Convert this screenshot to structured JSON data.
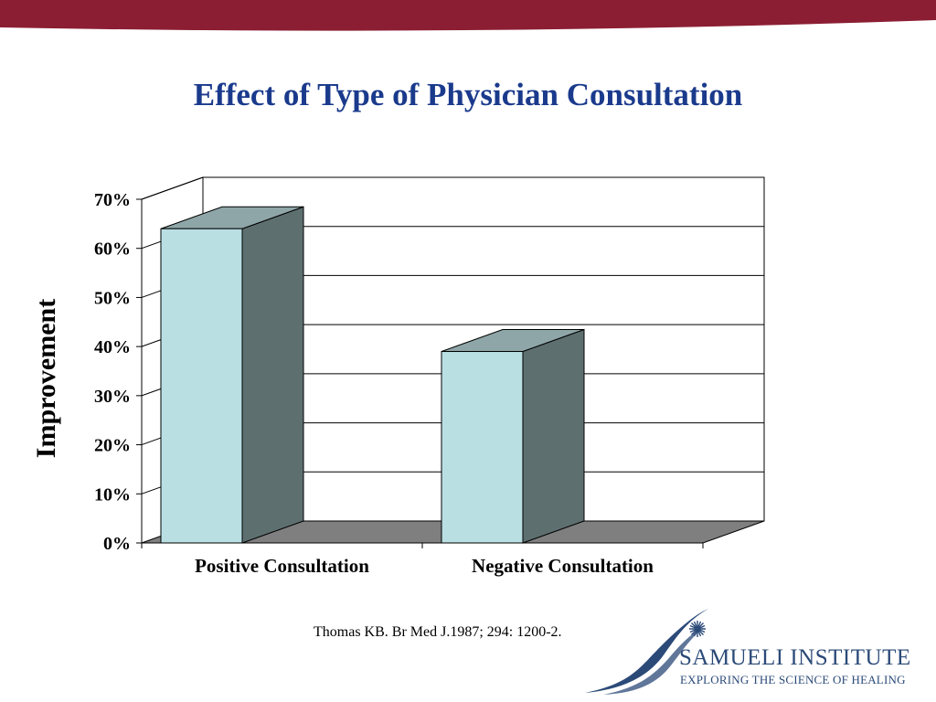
{
  "slide": {
    "title": "Effect of Type of Physician Consultation",
    "citation": "Thomas KB.  Br Med J.1987; 294: 1200-2."
  },
  "logo": {
    "name": "SAMUELI INSTITUTE",
    "tagline": "EXPLORING THE SCIENCE OF HEALING",
    "icon": "starburst-icon"
  },
  "colors": {
    "band": "#8b1e33",
    "title": "#1a3a8c",
    "bar_front": "#b9dfe3",
    "bar_side": "#5e6f70",
    "bar_top": "#8fa6a8",
    "floor": "#7f7f7f",
    "logo": "#2b4a78"
  },
  "chart_data": {
    "type": "bar",
    "title": "Effect of Type of Physician Consultation",
    "categories": [
      "Positive Consultation",
      "Negative Consultation"
    ],
    "values": [
      64,
      39
    ],
    "ylabel": "Improvement",
    "xlabel": "",
    "ylim": [
      0,
      70
    ],
    "yticks": [
      "0%",
      "10%",
      "20%",
      "30%",
      "40%",
      "50%",
      "60%",
      "70%"
    ],
    "grid": true,
    "style": "3d"
  }
}
